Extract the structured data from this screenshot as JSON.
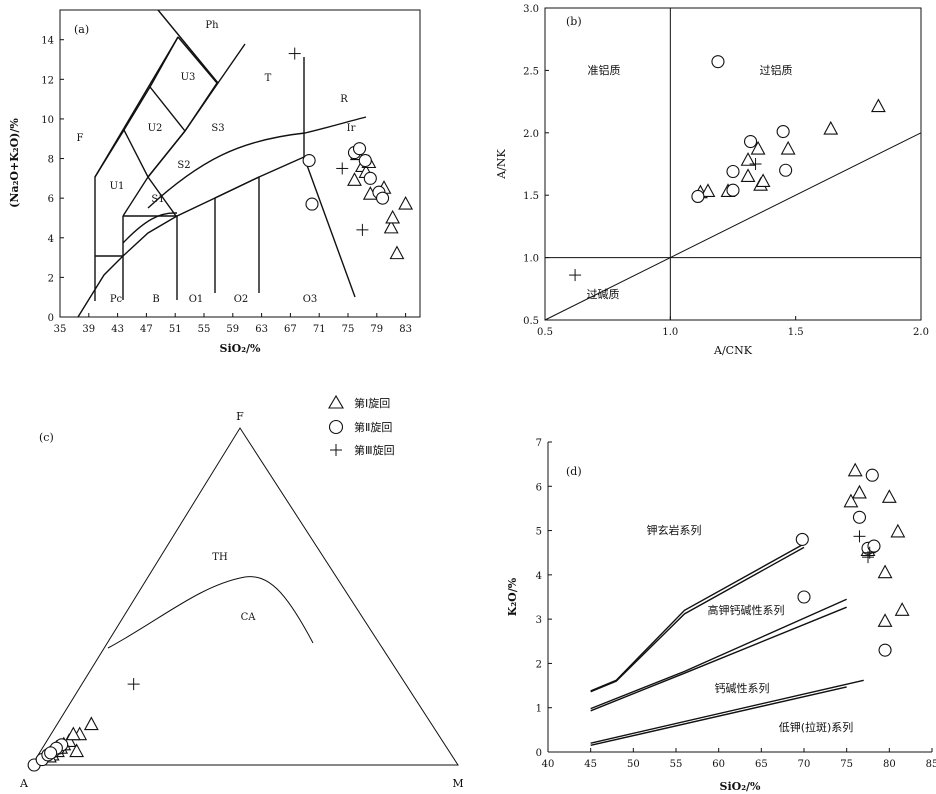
{
  "chart_data": [
    {
      "id": "a",
      "type": "scatter",
      "panel_label": "(a)",
      "xlabel": "SiO₂/%",
      "ylabel": "(Na₂O+K₂O)/%",
      "xlim": [
        35,
        85
      ],
      "ylim": [
        0,
        15.5
      ],
      "x_ticks": [
        35,
        39,
        43,
        47,
        51,
        55,
        59,
        63,
        67,
        71,
        75,
        79,
        83
      ],
      "y_ticks": [
        0,
        2,
        4,
        6,
        8,
        10,
        12,
        14
      ],
      "field_labels": [
        "Ph",
        "U3",
        "T",
        "F",
        "U2",
        "S3",
        "R",
        "Ir",
        "S2",
        "U1",
        "S1",
        "Pc",
        "B",
        "O1",
        "O2",
        "O3"
      ],
      "series": [
        {
          "name": "第Ⅰ旋回",
          "marker": "triangle",
          "points": [
            [
              75.9,
              6.9
            ],
            [
              76.3,
              8.2
            ],
            [
              77.0,
              7.6
            ],
            [
              77.5,
              7.3
            ],
            [
              77.9,
              7.8
            ],
            [
              78.1,
              6.2
            ],
            [
              80.0,
              6.5
            ],
            [
              81.0,
              4.5
            ],
            [
              81.2,
              5.0
            ],
            [
              81.8,
              3.2
            ],
            [
              83.0,
              5.7
            ]
          ]
        },
        {
          "name": "第Ⅱ旋回",
          "marker": "circle",
          "points": [
            [
              69.6,
              7.9
            ],
            [
              70.0,
              5.7
            ],
            [
              75.9,
              8.3
            ],
            [
              76.6,
              8.5
            ],
            [
              77.4,
              7.9
            ],
            [
              78.1,
              7.0
            ],
            [
              79.3,
              6.3
            ],
            [
              79.8,
              6.0
            ]
          ]
        },
        {
          "name": "第Ⅲ旋回",
          "marker": "plus",
          "points": [
            [
              67.6,
              13.3
            ],
            [
              74.2,
              7.5
            ],
            [
              77.0,
              4.4
            ]
          ]
        }
      ]
    },
    {
      "id": "b",
      "type": "scatter",
      "panel_label": "(b)",
      "xlabel": "A/CNK",
      "ylabel": "A/NK",
      "xlim": [
        0.5,
        2.0
      ],
      "ylim": [
        0.5,
        3.0
      ],
      "x_ticks": [
        0.5,
        1.0,
        1.5,
        2.0
      ],
      "y_ticks": [
        0.5,
        1.0,
        1.5,
        2.0,
        2.5,
        3.0
      ],
      "field_labels": [
        "准铝质",
        "过铝质",
        "过碱质"
      ],
      "series": [
        {
          "name": "第Ⅰ旋回",
          "marker": "triangle",
          "points": [
            [
              1.12,
              1.52
            ],
            [
              1.15,
              1.53
            ],
            [
              1.23,
              1.53
            ],
            [
              1.31,
              1.78
            ],
            [
              1.31,
              1.65
            ],
            [
              1.35,
              1.87
            ],
            [
              1.36,
              1.58
            ],
            [
              1.37,
              1.61
            ],
            [
              1.47,
              1.87
            ],
            [
              1.64,
              2.03
            ],
            [
              1.83,
              2.21
            ]
          ]
        },
        {
          "name": "第Ⅱ旋回",
          "marker": "circle",
          "points": [
            [
              1.11,
              1.49
            ],
            [
              1.19,
              2.57
            ],
            [
              1.25,
              1.54
            ],
            [
              1.25,
              1.69
            ],
            [
              1.32,
              1.93
            ],
            [
              1.45,
              2.01
            ],
            [
              1.46,
              1.7
            ]
          ]
        },
        {
          "name": "第Ⅲ旋回",
          "marker": "plus",
          "points": [
            [
              0.62,
              0.86
            ],
            [
              1.34,
              1.75
            ]
          ]
        }
      ]
    },
    {
      "id": "c",
      "type": "scatter",
      "panel_label": "(c)",
      "vertex_labels": {
        "top": "F",
        "left": "A",
        "right": "M"
      },
      "field_labels": [
        "TH",
        "CA"
      ],
      "series": [
        {
          "name": "第Ⅰ旋回",
          "marker": "triangle",
          "points": [
            [
              0.11,
              0.06
            ],
            [
              0.09,
              0.045
            ],
            [
              0.095,
              0.02
            ],
            [
              0.07,
              0.035
            ],
            [
              0.055,
              0.025
            ],
            [
              0.06,
              0.03
            ],
            [
              0.05,
              0.02
            ],
            [
              0.045,
              0.025
            ],
            [
              0.04,
              0.015
            ],
            [
              0.035,
              0.012
            ],
            [
              0.075,
              0.045
            ]
          ]
        },
        {
          "name": "第Ⅱ旋回",
          "marker": "circle",
          "points": [
            [
              0.005,
              0.0
            ],
            [
              0.02,
              0.008
            ],
            [
              0.03,
              0.015
            ],
            [
              0.04,
              0.02
            ],
            [
              0.05,
              0.025
            ],
            [
              0.055,
              0.03
            ],
            [
              0.045,
              0.025
            ],
            [
              0.035,
              0.018
            ]
          ]
        },
        {
          "name": "第Ⅲ旋回",
          "marker": "plus",
          "points": [
            [
              0.18,
              0.12
            ]
          ]
        }
      ]
    },
    {
      "id": "d",
      "type": "scatter",
      "panel_label": "(d)",
      "xlabel": "SiO₂/%",
      "ylabel": "K₂O/%",
      "xlim": [
        40,
        85
      ],
      "ylim": [
        0,
        7
      ],
      "x_ticks": [
        40,
        45,
        50,
        55,
        60,
        65,
        70,
        75,
        80,
        85
      ],
      "y_ticks": [
        0,
        1,
        2,
        3,
        4,
        5,
        6,
        7
      ],
      "field_labels": [
        "钾玄岩系列",
        "高钾钙碱性系列",
        "钙碱性系列",
        "低钾(拉斑)系列"
      ],
      "series": [
        {
          "name": "第Ⅰ旋回",
          "marker": "triangle",
          "points": [
            [
              75.5,
              5.65
            ],
            [
              76.0,
              6.35
            ],
            [
              76.5,
              5.85
            ],
            [
              77.5,
              4.55
            ],
            [
              79.5,
              4.05
            ],
            [
              79.5,
              2.95
            ],
            [
              80.0,
              5.75
            ],
            [
              81.0,
              4.97
            ],
            [
              81.5,
              3.2
            ]
          ]
        },
        {
          "name": "第Ⅱ旋回",
          "marker": "circle",
          "points": [
            [
              69.8,
              4.8
            ],
            [
              70.0,
              3.5
            ],
            [
              76.5,
              5.3
            ],
            [
              77.5,
              4.6
            ],
            [
              78.0,
              6.25
            ],
            [
              78.2,
              4.65
            ],
            [
              79.5,
              2.3
            ]
          ]
        },
        {
          "name": "第Ⅲ旋回",
          "marker": "plus",
          "points": [
            [
              76.5,
              4.87
            ],
            [
              77.5,
              4.4
            ],
            [
              77.7,
              4.5
            ]
          ]
        }
      ]
    }
  ],
  "legend": {
    "items": [
      {
        "marker": "triangle",
        "label": "第Ⅰ旋回"
      },
      {
        "marker": "circle",
        "label": "第Ⅱ旋回"
      },
      {
        "marker": "plus",
        "label": "第Ⅲ旋回"
      }
    ]
  }
}
